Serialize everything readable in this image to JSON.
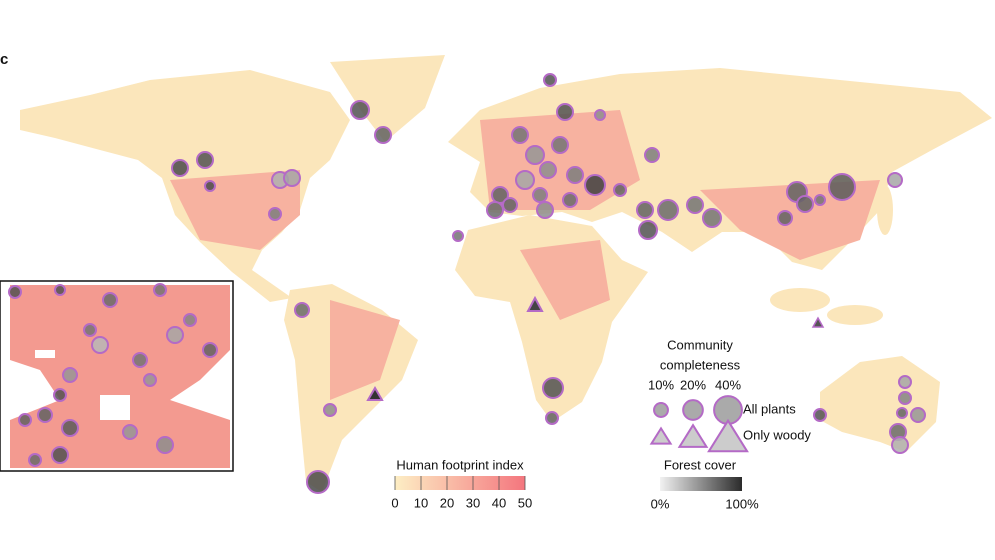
{
  "panel_label": "c",
  "legend": {
    "completeness": {
      "title_lines": [
        "Community",
        "completeness"
      ],
      "sizes": [
        {
          "value": 10,
          "label": "10%"
        },
        {
          "value": 20,
          "label": "20%"
        },
        {
          "value": 40,
          "label": "40%"
        }
      ],
      "groups": [
        "All plants",
        "Only woody"
      ]
    },
    "footprint": {
      "title": "Human footprint index",
      "range": [
        0,
        50
      ],
      "ticks": [
        0,
        10,
        20,
        30,
        40,
        50
      ]
    },
    "forest": {
      "title": "Forest cover",
      "range": [
        0,
        100
      ],
      "ticks": [
        {
          "value": 0,
          "label": "0%"
        },
        {
          "value": 100,
          "label": "100%"
        }
      ]
    }
  }
}
